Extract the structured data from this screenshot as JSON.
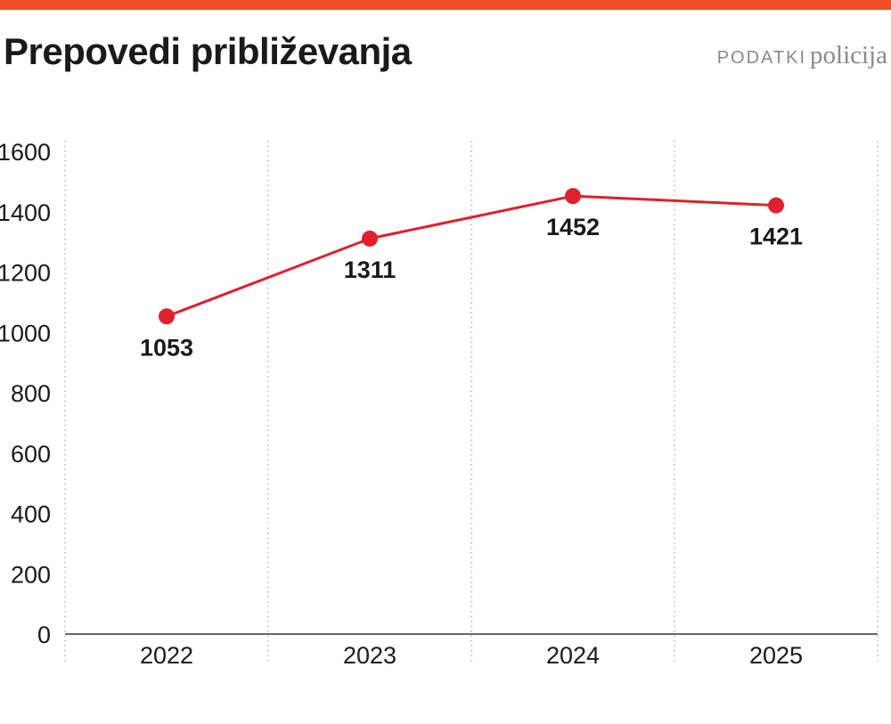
{
  "header": {
    "title": "Prepovedi približevanja",
    "source_label": "PODATKI",
    "source_value": "policija"
  },
  "colors": {
    "accent_bar": "#f04e28",
    "line": "#e0202c",
    "marker": "#e0202c",
    "text": "#1a1a1a",
    "source_text": "#8a8a8a",
    "grid": "#b5b5b5",
    "axis": "#333333"
  },
  "chart_data": {
    "type": "line",
    "title": "Prepovedi približevanja",
    "xlabel": "",
    "ylabel": "",
    "categories": [
      "2022",
      "2023",
      "2024",
      "2025"
    ],
    "series": [
      {
        "values": [
          1053,
          1311,
          1452,
          1421
        ],
        "labels": [
          "1053",
          "1311",
          "1452",
          "1421"
        ]
      }
    ],
    "ylim": [
      0,
      1600
    ],
    "yticks": [
      "0",
      "200",
      "400",
      "600",
      "800",
      "1000",
      "1200",
      "1400",
      "1600"
    ],
    "grid": "vertical-dotted",
    "legend": "none"
  }
}
